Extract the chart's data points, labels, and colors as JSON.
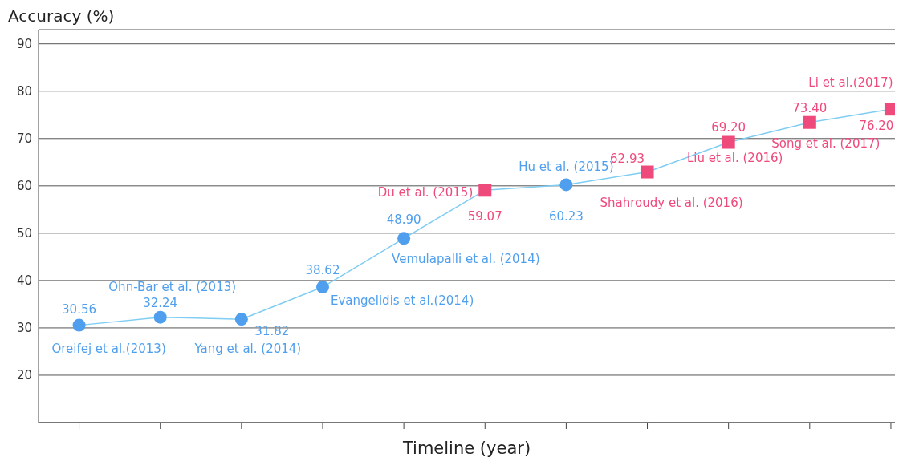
{
  "chart_data": {
    "type": "line",
    "xlabel": "Timeline (year)",
    "ylabel": "Accuracy (%)",
    "categories": [
      null,
      null,
      null,
      null,
      null,
      null,
      null,
      null,
      null,
      null,
      null
    ],
    "ylim": [
      10,
      93
    ],
    "yticks": [
      20,
      30,
      40,
      50,
      60,
      70,
      80,
      90
    ],
    "grid": "y",
    "series": [
      {
        "type": "line",
        "color": "#7fcdf2",
        "marker": "none",
        "values": [
          30.56,
          32.24,
          31.82,
          38.62,
          48.9,
          59.07,
          60.23,
          62.93,
          69.2,
          73.4,
          76.2
        ]
      },
      {
        "type": "scatter",
        "color": "#4f9fee",
        "marker": "circle",
        "values": [
          30.56,
          32.24,
          31.82,
          38.62,
          48.9,
          null,
          60.23,
          null,
          null,
          null,
          null
        ],
        "value_labels": [
          "30.56",
          "32.24",
          "31.82",
          "38.62",
          "48.90",
          null,
          "60.23",
          null,
          null,
          null,
          null
        ]
      },
      {
        "type": "scatter",
        "color": "#ef4a7c",
        "marker": "square",
        "values": [
          null,
          null,
          null,
          null,
          null,
          59.07,
          null,
          62.93,
          69.2,
          73.4,
          76.2
        ],
        "value_labels": [
          null,
          null,
          null,
          null,
          null,
          "59.07",
          null,
          "62.93",
          "69.20",
          "73.40",
          "76.20"
        ]
      }
    ],
    "annotations": [
      "Oreifej et al.(2013)",
      "Ohn-Bar et al. (2013)",
      "Yang et al. (2014)",
      "Evangelidis et al.(2014)",
      "Vemulapalli et al. (2014)",
      "Du et al.  (2015)",
      "Hu et al. (2015)",
      "Shahroudy et al.  (2016)",
      "Liu et al.  (2016)",
      "Song et al. (2017)",
      "Li et al.(2017)"
    ]
  }
}
